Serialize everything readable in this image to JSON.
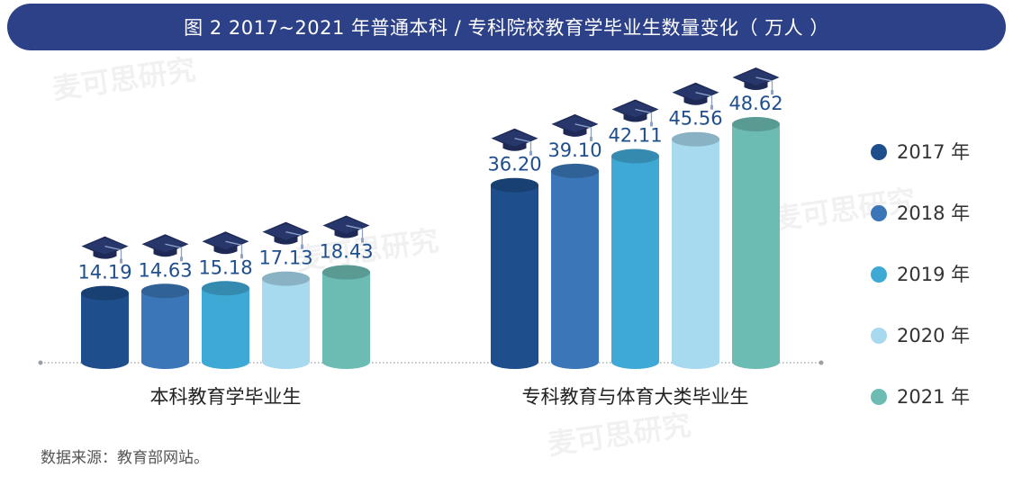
{
  "title": "图 2  2017~2021 年普通本科 / 专科院校教育学毕业生数量变化（ 万人 ）",
  "source": "数据来源：教育部网站。",
  "watermark": "麦可思研究",
  "chart_data": {
    "type": "bar",
    "categories": [
      "本科教育学毕业生",
      "专科教育与体育大类毕业生"
    ],
    "series": [
      {
        "name": "2017 年",
        "color": "#1f4e8c",
        "values": [
          14.19,
          36.2
        ]
      },
      {
        "name": "2018 年",
        "color": "#3a76b8",
        "values": [
          14.63,
          39.1
        ]
      },
      {
        "name": "2019 年",
        "color": "#3fa9d6",
        "values": [
          15.18,
          42.11
        ]
      },
      {
        "name": "2020 年",
        "color": "#a7daef",
        "values": [
          17.13,
          45.56
        ]
      },
      {
        "name": "2021 年",
        "color": "#6cbcb3",
        "values": [
          18.43,
          48.62
        ]
      }
    ],
    "value_labels": [
      [
        "14.19",
        "36.20"
      ],
      [
        "14.63",
        "39.10"
      ],
      [
        "15.18",
        "42.11"
      ],
      [
        "17.13",
        "45.56"
      ],
      [
        "18.43",
        "48.62"
      ]
    ],
    "ylim": [
      0,
      55
    ],
    "legend_position": "right",
    "grid": false,
    "marker_icon": "graduation-cap-icon"
  }
}
